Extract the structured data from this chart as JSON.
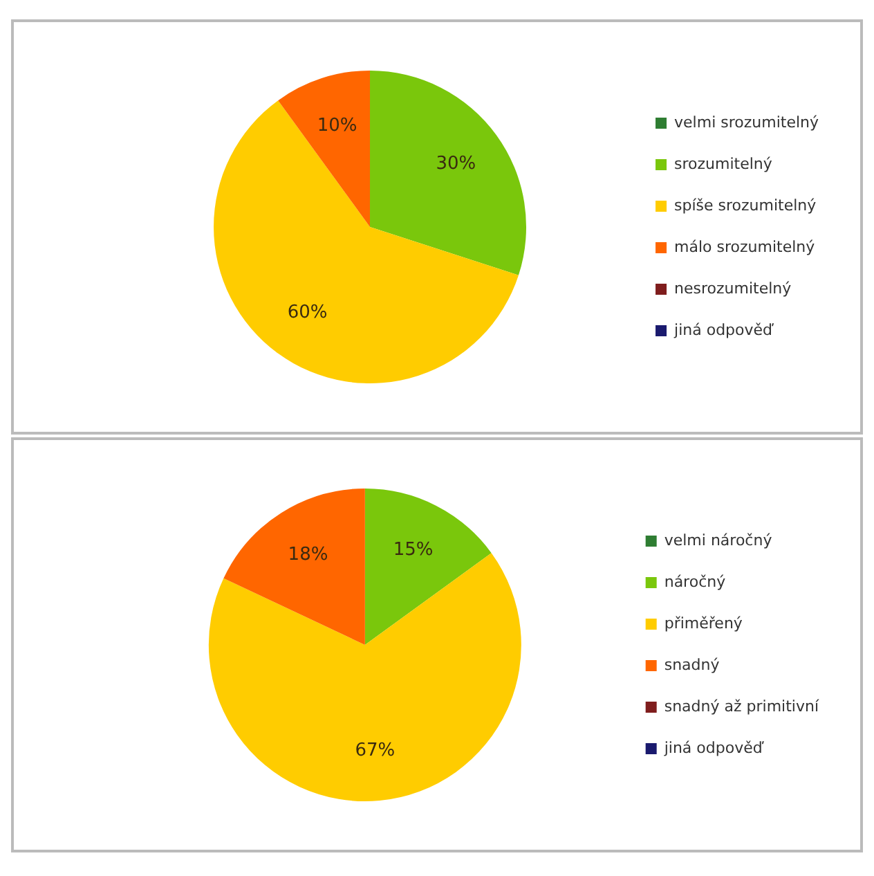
{
  "chart_data": [
    {
      "type": "pie",
      "categories": [
        "velmi srozumitelný",
        "srozumitelný",
        "spíše srozumitelný",
        "málo srozumitelný",
        "nesrozumitelný",
        "jiná odpověď"
      ],
      "values": [
        0,
        30,
        60,
        10,
        0,
        0
      ],
      "value_labels": [
        null,
        "30%",
        "60%",
        "10%",
        null,
        null
      ],
      "colors": [
        "#2e7d32",
        "#7ac70c",
        "#ffcc00",
        "#ff6600",
        "#7f1d1d",
        "#1a1a6e"
      ],
      "legend": "right"
    },
    {
      "type": "pie",
      "categories": [
        "velmi náročný",
        "náročný",
        "přiměřený",
        "snadný",
        "snadný až primitivní",
        "jiná odpověď"
      ],
      "values": [
        0,
        15,
        67,
        18,
        0,
        0
      ],
      "value_labels": [
        null,
        "15%",
        "67%",
        "18%",
        null,
        null
      ],
      "colors": [
        "#2e7d32",
        "#7ac70c",
        "#ffcc00",
        "#ff6600",
        "#7f1d1d",
        "#1a1a6e"
      ],
      "legend": "right"
    }
  ]
}
